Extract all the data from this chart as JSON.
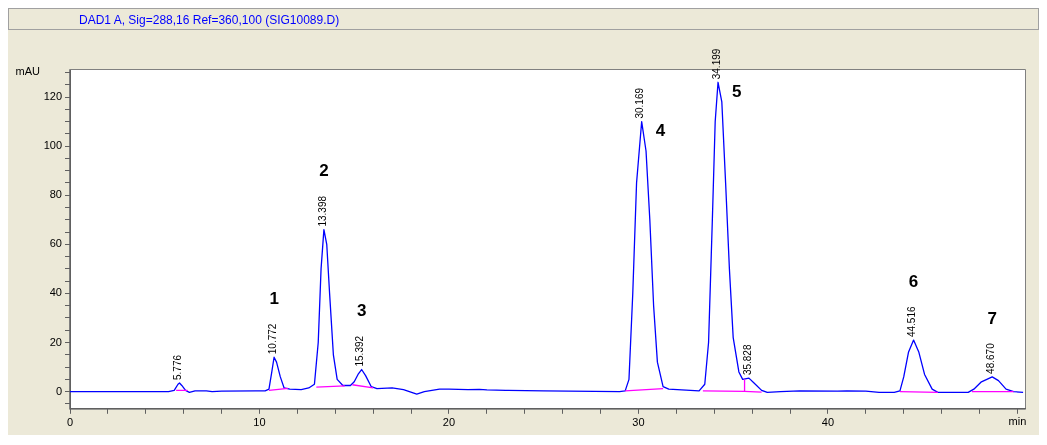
{
  "chart_data": {
    "type": "line",
    "title": "DAD1 A, Sig=288,16 Ref=360,100 (SIG10089.D)",
    "xlabel": "min",
    "ylabel": "mAU",
    "xlim": [
      0,
      50.4
    ],
    "ylim": [
      -7,
      131
    ],
    "xticks": [
      0,
      {
        "value": 2,
        "label": null
      },
      {
        "value": 4,
        "label": null
      },
      {
        "value": 6,
        "label": null
      },
      {
        "value": 8,
        "label": null
      },
      10,
      {
        "value": 12,
        "label": null
      },
      {
        "value": 14,
        "label": null
      },
      {
        "value": 16,
        "label": null
      },
      {
        "value": 18,
        "label": null
      },
      20,
      {
        "value": 22,
        "label": null
      },
      {
        "value": 24,
        "label": null
      },
      {
        "value": 26,
        "label": null
      },
      {
        "value": 28,
        "label": null
      },
      30,
      {
        "value": 32,
        "label": null
      },
      {
        "value": 34,
        "label": null
      },
      {
        "value": 36,
        "label": null
      },
      {
        "value": 38,
        "label": null
      },
      40,
      {
        "value": 42,
        "label": null
      },
      {
        "value": 44,
        "label": null
      },
      {
        "value": 46,
        "label": null
      },
      {
        "value": 48,
        "label": null
      },
      {
        "value": 50,
        "label": null
      }
    ],
    "yticks": [
      {
        "value": -5,
        "label": null
      },
      0,
      {
        "value": 5,
        "label": null
      },
      {
        "value": 10,
        "label": null
      },
      {
        "value": 15,
        "label": null
      },
      20,
      {
        "value": 25,
        "label": null
      },
      {
        "value": 30,
        "label": null
      },
      {
        "value": 35,
        "label": null
      },
      40,
      {
        "value": 45,
        "label": null
      },
      {
        "value": 50,
        "label": null
      },
      {
        "value": 55,
        "label": null
      },
      60,
      {
        "value": 65,
        "label": null
      },
      {
        "value": 70,
        "label": null
      },
      {
        "value": 75,
        "label": null
      },
      80,
      {
        "value": 85,
        "label": null
      },
      {
        "value": 90,
        "label": null
      },
      {
        "value": 95,
        "label": null
      },
      100,
      {
        "value": 105,
        "label": null
      },
      {
        "value": 110,
        "label": null
      },
      {
        "value": 115,
        "label": null
      },
      120,
      {
        "value": 125,
        "label": null
      },
      {
        "value": 130,
        "label": null
      }
    ],
    "grid": false,
    "legend": false,
    "series": [
      {
        "color": "#0000ff",
        "x": [
          0,
          5.2,
          5.5,
          5.7,
          5.78,
          5.9,
          6.1,
          6.3,
          6.6,
          7.2,
          7.5,
          8,
          10.3,
          10.5,
          10.65,
          10.77,
          10.9,
          11.1,
          11.3,
          11.6,
          12.2,
          12.6,
          12.9,
          13.1,
          13.25,
          13.4,
          13.55,
          13.7,
          13.9,
          14.1,
          14.4,
          14.8,
          15,
          15.2,
          15.39,
          15.6,
          15.9,
          16.2,
          17,
          17.6,
          18.3,
          18.7,
          19.5,
          20,
          21,
          21.6,
          22,
          23,
          25,
          29,
          29.3,
          29.5,
          29.7,
          29.9,
          30.17,
          30.4,
          30.6,
          30.8,
          31,
          31.3,
          31.6,
          33.2,
          33.5,
          33.7,
          33.9,
          34.05,
          34.2,
          34.4,
          34.6,
          34.8,
          35,
          35.3,
          35.5,
          35.83,
          36.1,
          36.5,
          36.8,
          37.5,
          38.5,
          40.5,
          41,
          42,
          42.7,
          43.5,
          43.8,
          44,
          44.25,
          44.52,
          44.8,
          45.1,
          45.5,
          45.8,
          47.4,
          47.7,
          48.1,
          48.67,
          49,
          49.4,
          49.8,
          50.3
        ],
        "values": [
          0,
          0,
          0.5,
          3,
          3.5,
          2.5,
          0.5,
          -0.3,
          0.3,
          0.3,
          0,
          0.2,
          0.3,
          1,
          8,
          14,
          12,
          6,
          1.5,
          1,
          0.8,
          1.5,
          3,
          20,
          50,
          66,
          60,
          40,
          15,
          5,
          2.5,
          2.5,
          4,
          7,
          9,
          6.5,
          2,
          1.2,
          1.5,
          0.8,
          -1,
          0,
          1,
          1,
          0.8,
          0.9,
          0.7,
          0.5,
          0.3,
          0,
          0.3,
          5,
          40,
          85,
          110,
          98,
          70,
          35,
          12,
          2,
          1,
          0.3,
          3,
          20,
          70,
          110,
          126,
          118,
          85,
          50,
          22,
          8,
          5,
          5.5,
          3.5,
          0.5,
          -0.3,
          0,
          0.3,
          0.2,
          0.3,
          0.2,
          -0.3,
          -0.3,
          0.3,
          6,
          16,
          21,
          16,
          7,
          1,
          -0.3,
          -0.3,
          1,
          4,
          6,
          4.5,
          1,
          0,
          -0.3
        ]
      },
      {
        "color": "#ff00ff",
        "x": [
          5.6,
          6.2
        ],
        "values": [
          0.5,
          0.5
        ]
      },
      {
        "color": "#ff00ff",
        "x": [
          10.5,
          11.5
        ],
        "values": [
          0.5,
          1.3
        ]
      },
      {
        "color": "#ff00ff",
        "x": [
          13,
          14.5
        ],
        "values": [
          1.8,
          2.3
        ]
      },
      {
        "color": "#ff00ff",
        "x": [
          14.9,
          16
        ],
        "values": [
          2.8,
          1.5
        ]
      },
      {
        "color": "#ff00ff",
        "x": [
          29.3,
          31.3
        ],
        "values": [
          0.3,
          1.2
        ]
      },
      {
        "color": "#ff00ff",
        "x": [
          33.4,
          35.6,
          36.5
        ],
        "values": [
          0.3,
          0.1,
          -0.2
        ]
      },
      {
        "color": "#ff00ff",
        "x": [
          35.6,
          35.6
        ],
        "values": [
          0.1,
          5
        ]
      },
      {
        "color": "#ff00ff",
        "x": [
          43.8,
          45.8
        ],
        "values": [
          0,
          -0.3
        ]
      },
      {
        "color": "#ff00ff",
        "x": [
          47.6,
          49.8
        ],
        "values": [
          0,
          0
        ]
      }
    ],
    "annotations": [
      {
        "text": "5.776",
        "x": 5.776,
        "y": 3.5
      },
      {
        "text": "10.772",
        "x": 10.772,
        "y": 14
      },
      {
        "text": "13.398",
        "x": 13.398,
        "y": 66
      },
      {
        "text": "15.392",
        "x": 15.392,
        "y": 9
      },
      {
        "text": "30.169",
        "x": 30.169,
        "y": 110
      },
      {
        "text": "34.199",
        "x": 34.199,
        "y": 126
      },
      {
        "text": "35.828",
        "x": 35.828,
        "y": 5.5
      },
      {
        "text": "44.516",
        "x": 44.516,
        "y": 21
      },
      {
        "text": "48.670",
        "x": 48.67,
        "y": 6
      },
      {
        "text": "1",
        "x": 10.772,
        "y": 14
      },
      {
        "text": "2",
        "x": 13.398,
        "y": 66
      },
      {
        "text": "3",
        "x": 15.392,
        "y": 9
      },
      {
        "text": "4",
        "x": 30.169,
        "y": 110
      },
      {
        "text": "5",
        "x": 34.199,
        "y": 126
      },
      {
        "text": "6",
        "x": 44.516,
        "y": 21
      },
      {
        "text": "7",
        "x": 48.67,
        "y": 6
      }
    ]
  }
}
